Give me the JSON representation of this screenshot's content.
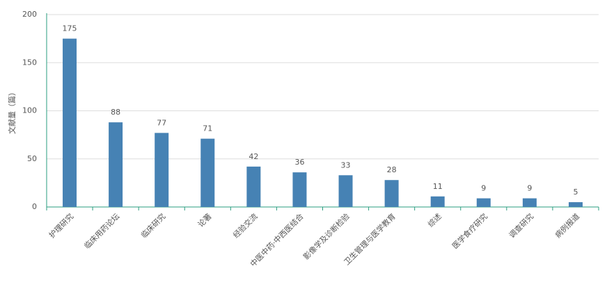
{
  "chart_data": {
    "type": "bar",
    "y_label": "文献量（篇）",
    "categories": [
      "护理研究",
      "临床用药论坛",
      "临床研究",
      "论著",
      "经验交流",
      "中医中药·中西医结合",
      "影像学及诊断检验",
      "卫生管理与医学教育",
      "综述",
      "医学食疗研究",
      "调查研究",
      "病例报道"
    ],
    "values": [
      175,
      88,
      77,
      71,
      42,
      36,
      33,
      28,
      11,
      9,
      9,
      5
    ],
    "color": "#4682b4",
    "ylim": [
      0,
      200
    ],
    "yticks": [
      0,
      50,
      100,
      150,
      200
    ],
    "grid": true
  }
}
